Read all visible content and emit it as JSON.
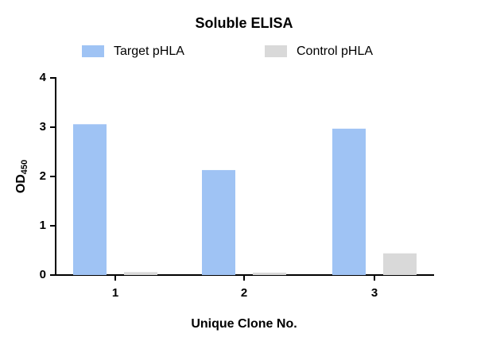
{
  "chart_data": {
    "type": "bar",
    "title": "Soluble ELISA",
    "x_label": "Unique Clone No.",
    "y_label": "OD",
    "y_label_subscript": "450",
    "categories": [
      "1",
      "2",
      "3"
    ],
    "series": [
      {
        "name": "Target pHLA",
        "color": "#9fc3f4",
        "values": [
          3.06,
          2.13,
          2.97
        ]
      },
      {
        "name": "Control pHLA",
        "color": "#d9d9d9",
        "values": [
          0.06,
          0.05,
          0.44
        ]
      }
    ],
    "ylim": [
      0,
      4
    ],
    "yticks": [
      0,
      1,
      2,
      3,
      4
    ],
    "grid": false,
    "legend": "top"
  }
}
